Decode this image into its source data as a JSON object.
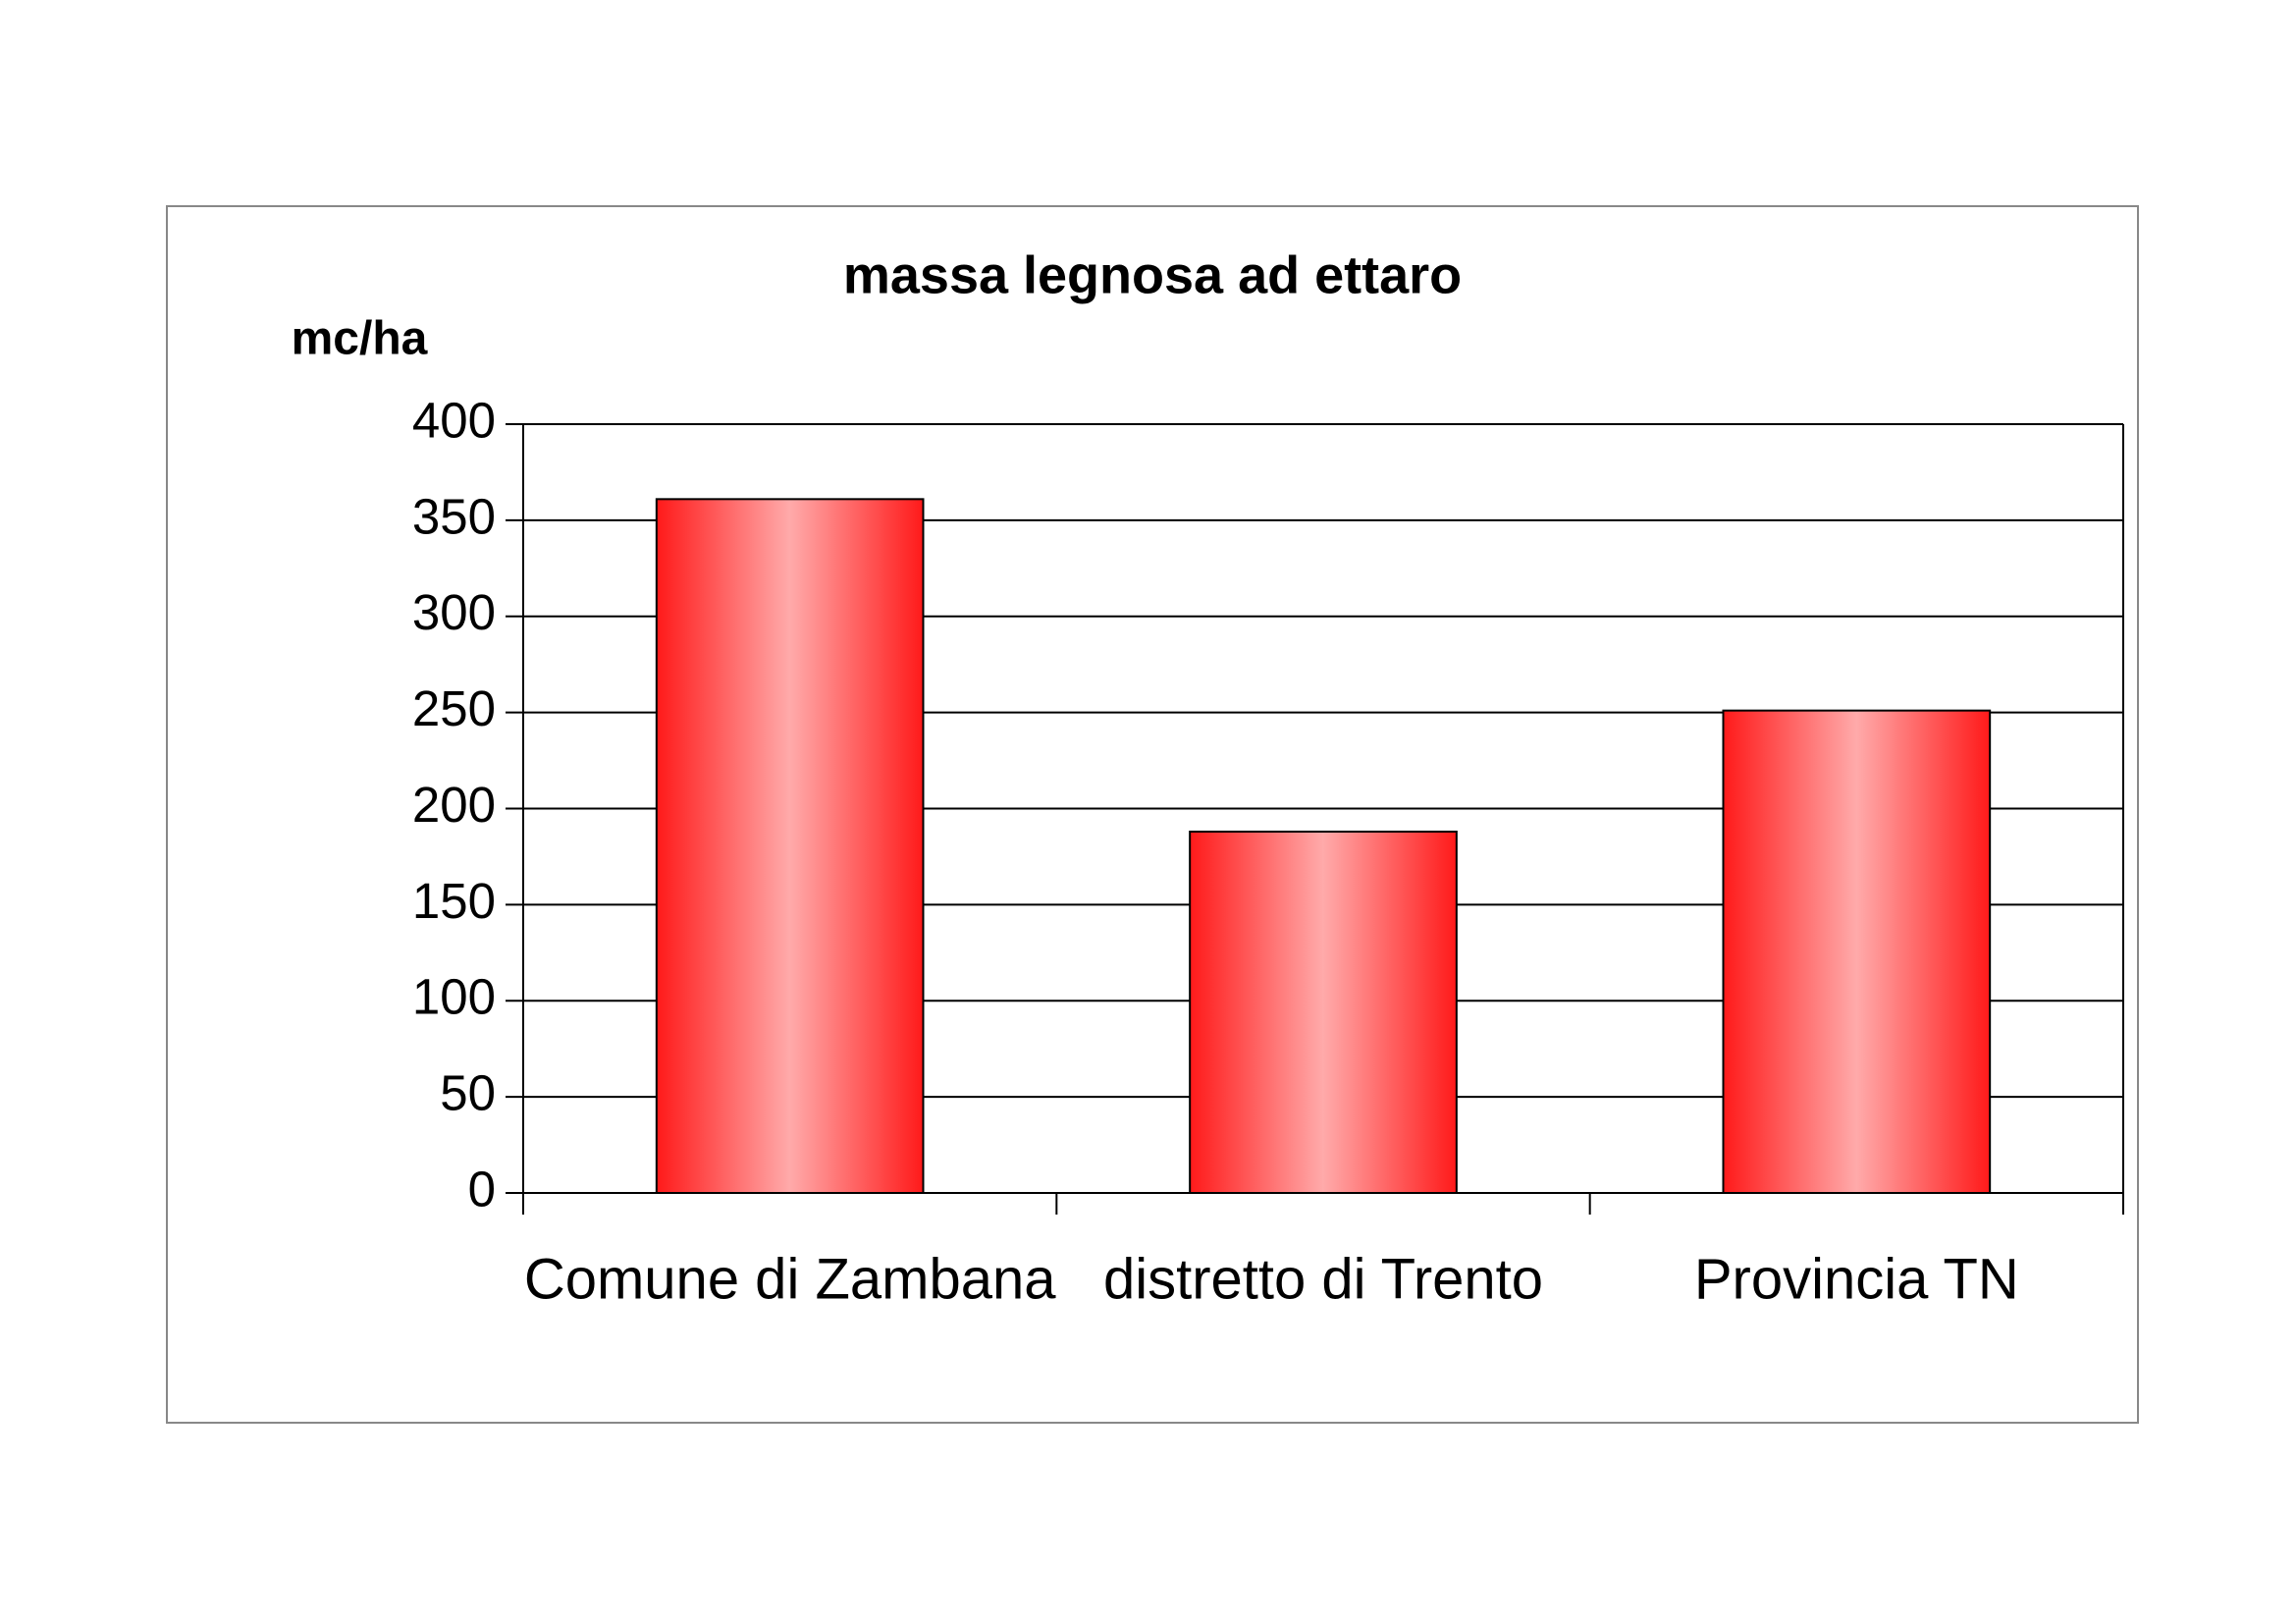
{
  "chart_data": {
    "type": "bar",
    "title": "massa legnosa ad ettaro",
    "y_label": "mc/ha",
    "categories": [
      "Comune di Zambana",
      "distretto di Trento",
      "Provincia TN"
    ],
    "values": [
      361,
      188,
      251
    ],
    "color": "#ff1a1a",
    "ylim": [
      0,
      400
    ],
    "yticks": [
      0,
      50,
      100,
      150,
      200,
      250,
      300,
      350,
      400
    ],
    "grid": true
  }
}
